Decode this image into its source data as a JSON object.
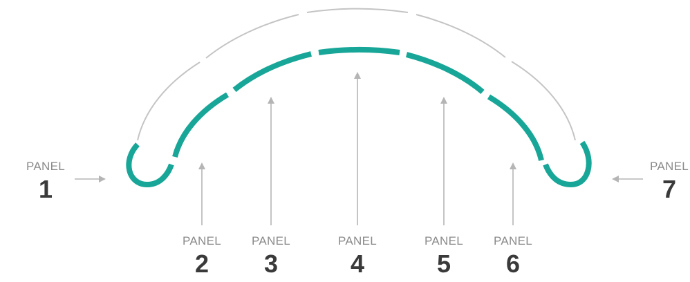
{
  "colors": {
    "panel_stroke": "#17a697",
    "outline_stroke": "#c4c4c4",
    "arrow": "#b5b5b5",
    "label_word": "#8a8a8a",
    "label_number": "#3a3a3a",
    "background": "#ffffff"
  },
  "panels": [
    {
      "word": "PANEL",
      "number": "1"
    },
    {
      "word": "PANEL",
      "number": "2"
    },
    {
      "word": "PANEL",
      "number": "3"
    },
    {
      "word": "PANEL",
      "number": "4"
    },
    {
      "word": "PANEL",
      "number": "5"
    },
    {
      "word": "PANEL",
      "number": "6"
    },
    {
      "word": "PANEL",
      "number": "7"
    }
  ]
}
